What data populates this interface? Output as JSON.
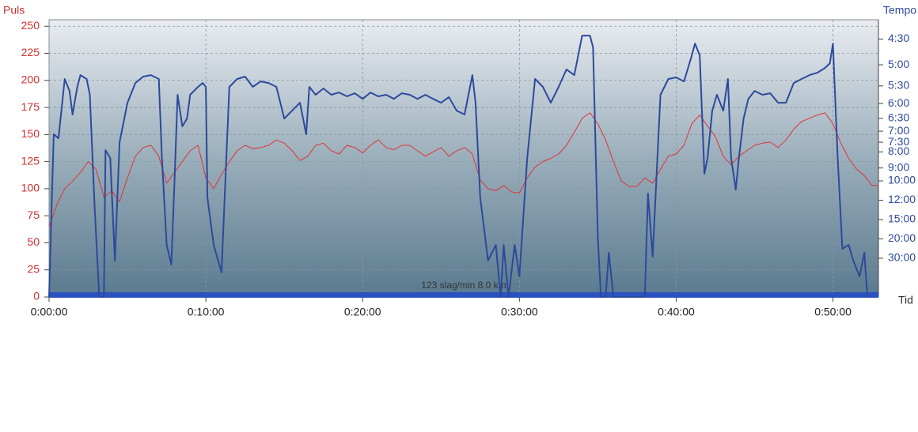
{
  "chart_data": {
    "type": "line",
    "y_label": "Puls",
    "y2_label": "Tempo",
    "x_label": "Tid",
    "annotation": "123 slag/min 8.0 km",
    "xlim": [
      0,
      52.9
    ],
    "xticks": [
      {
        "value": 0,
        "label": "0:00:00"
      },
      {
        "value": 10,
        "label": "0:10:00"
      },
      {
        "value": 20,
        "label": "0:20:00"
      },
      {
        "value": 30,
        "label": "0:30:00"
      },
      {
        "value": 40,
        "label": "0:40:00"
      },
      {
        "value": 50,
        "label": "0:50:00"
      }
    ],
    "ylim": [
      0,
      256
    ],
    "yticks": [
      0,
      25,
      50,
      75,
      100,
      125,
      150,
      175,
      200,
      225,
      250
    ],
    "y2lim": [
      0,
      14.33
    ],
    "y2ticks": [
      {
        "value": 13.333,
        "label": "4:30"
      },
      {
        "value": 12,
        "label": "5:00"
      },
      {
        "value": 10.909,
        "label": "5:30"
      },
      {
        "value": 10,
        "label": "6:00"
      },
      {
        "value": 9.231,
        "label": "6:30"
      },
      {
        "value": 8.571,
        "label": "7:00"
      },
      {
        "value": 8,
        "label": "7:30"
      },
      {
        "value": 7.5,
        "label": "8:00"
      },
      {
        "value": 6.667,
        "label": "9:00"
      },
      {
        "value": 6,
        "label": "10:00"
      },
      {
        "value": 5,
        "label": "12:00"
      },
      {
        "value": 4,
        "label": "15:00"
      },
      {
        "value": 3,
        "label": "20:00"
      },
      {
        "value": 2,
        "label": "30:00"
      }
    ],
    "grid": true,
    "series": [
      {
        "name": "Puls",
        "color": "#e03434",
        "axis": "y",
        "x": [
          0,
          0.5,
          1,
          1.5,
          2,
          2.5,
          3,
          3.5,
          4,
          4.5,
          5,
          5.5,
          6,
          6.5,
          7,
          7.5,
          8,
          8.5,
          9,
          9.5,
          10,
          10.5,
          11,
          11.5,
          12,
          12.5,
          13,
          13.5,
          14,
          14.5,
          15,
          15.5,
          16,
          16.5,
          17,
          17.5,
          18,
          18.5,
          19,
          19.5,
          20,
          20.5,
          21,
          21.5,
          22,
          22.5,
          23,
          23.5,
          24,
          24.5,
          25,
          25.5,
          26,
          26.5,
          27,
          27.5,
          28,
          28.5,
          29,
          29.5,
          30,
          30.5,
          31,
          31.5,
          32,
          32.5,
          33,
          33.5,
          34,
          34.5,
          35,
          35.5,
          36,
          36.5,
          37,
          37.5,
          38,
          38.5,
          39,
          39.5,
          40,
          40.5,
          41,
          41.5,
          42,
          42.5,
          43,
          43.5,
          44,
          44.5,
          45,
          45.5,
          46,
          46.5,
          47,
          47.5,
          48,
          48.5,
          49,
          49.5,
          50,
          50.5,
          51,
          51.5,
          52,
          52.5,
          52.9
        ],
        "values": [
          65,
          85,
          100,
          107,
          115,
          125,
          118,
          92,
          98,
          88,
          110,
          130,
          138,
          140,
          130,
          105,
          115,
          125,
          135,
          140,
          110,
          100,
          113,
          125,
          135,
          140,
          137,
          138,
          140,
          145,
          142,
          135,
          126,
          130,
          140,
          142,
          135,
          132,
          140,
          138,
          133,
          140,
          145,
          138,
          136,
          140,
          140,
          135,
          130,
          134,
          138,
          130,
          135,
          138,
          132,
          108,
          100,
          98,
          103,
          97,
          96,
          110,
          120,
          125,
          128,
          132,
          140,
          152,
          165,
          170,
          160,
          145,
          125,
          107,
          102,
          102,
          110,
          105,
          118,
          130,
          132,
          140,
          160,
          168,
          158,
          148,
          130,
          122,
          130,
          135,
          140,
          142,
          143,
          138,
          145,
          155,
          162,
          165,
          168,
          170,
          160,
          142,
          128,
          118,
          112,
          103,
          103
        ]
      },
      {
        "name": "Tempo",
        "color": "#2c4a9c",
        "axis": "y2",
        "x": [
          0,
          0.3,
          0.6,
          1,
          1.3,
          1.5,
          1.8,
          2,
          2.4,
          2.6,
          2.9,
          3.2,
          3.5,
          3.6,
          3.9,
          4.2,
          4.5,
          5,
          5.5,
          6,
          6.5,
          7,
          7.2,
          7.5,
          7.8,
          8,
          8.2,
          8.5,
          8.8,
          9,
          9.5,
          9.8,
          10,
          10.1,
          10.5,
          11,
          11.5,
          12,
          12.5,
          13,
          13.5,
          14,
          14.5,
          15,
          15.5,
          16,
          16.4,
          16.6,
          17,
          17.5,
          18,
          18.5,
          19,
          19.5,
          20,
          20.5,
          21,
          21.5,
          22,
          22.5,
          23,
          23.5,
          24,
          24.5,
          25,
          25.5,
          26,
          26.5,
          27,
          27.2,
          27.5,
          28,
          28.5,
          28.8,
          29,
          29.3,
          29.7,
          30,
          30.5,
          31,
          31.5,
          32,
          32.5,
          33,
          33.5,
          34,
          34.5,
          34.7,
          35,
          35.2,
          35.5,
          35.7,
          36,
          38,
          38.2,
          38.5,
          38.8,
          39,
          39.5,
          40,
          40.5,
          41,
          41.2,
          41.5,
          41.8,
          42,
          42.3,
          42.6,
          43,
          43.3,
          43.5,
          43.8,
          44,
          44.3,
          44.6,
          45,
          45.5,
          46,
          46.5,
          47,
          47.5,
          48,
          48.5,
          49,
          49.5,
          49.8,
          50,
          50.3,
          50.6,
          51,
          51.3,
          51.7,
          52,
          52.2
        ],
        "values": [
          0,
          8.41,
          8.2,
          11.27,
          10.65,
          9.43,
          10.86,
          11.47,
          11.27,
          10.45,
          4.73,
          0,
          0,
          7.59,
          7.18,
          1.88,
          8.0,
          10.04,
          11.06,
          11.39,
          11.47,
          11.27,
          7.18,
          2.69,
          1.67,
          5.96,
          10.45,
          8.82,
          9.22,
          10.45,
          10.86,
          11.06,
          10.86,
          5.14,
          2.69,
          1.27,
          10.86,
          11.27,
          11.39,
          10.86,
          11.14,
          11.06,
          10.86,
          9.22,
          9.63,
          10.04,
          8.41,
          10.86,
          10.45,
          10.78,
          10.45,
          10.57,
          10.37,
          10.53,
          10.24,
          10.57,
          10.37,
          10.45,
          10.24,
          10.53,
          10.45,
          10.24,
          10.45,
          10.24,
          10.04,
          10.33,
          9.63,
          9.43,
          11.47,
          10.04,
          5.14,
          1.88,
          2.69,
          0,
          2.69,
          0,
          2.69,
          1.06,
          7.18,
          11.27,
          10.86,
          10.04,
          10.86,
          11.76,
          11.47,
          13.51,
          13.51,
          12.9,
          3.1,
          0,
          0,
          2.29,
          0,
          0,
          5.35,
          2.08,
          7.18,
          10.45,
          11.27,
          11.35,
          11.14,
          12.49,
          13.1,
          12.49,
          6.37,
          7.18,
          9.63,
          10.45,
          9.63,
          11.27,
          7.18,
          5.55,
          7.18,
          9.22,
          10.24,
          10.65,
          10.45,
          10.53,
          10.04,
          10.04,
          11.06,
          11.27,
          11.47,
          11.59,
          11.84,
          12.08,
          13.1,
          7.18,
          2.49,
          2.69,
          1.88,
          1.06,
          2.29,
          0
        ]
      }
    ]
  }
}
